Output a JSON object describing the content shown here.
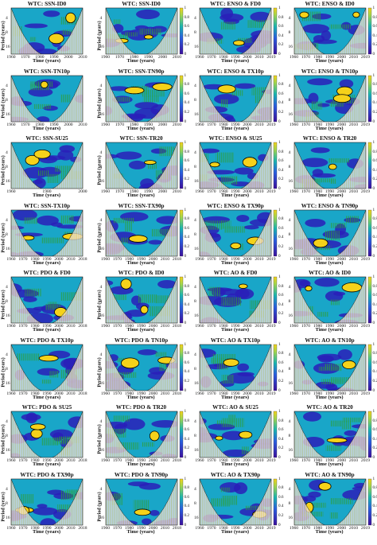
{
  "figure": {
    "colorbar_ticks": [
      "1",
      "0.8",
      "0.6",
      "0.4",
      "0.2",
      "0"
    ],
    "period_ticks": [
      "4",
      "8",
      "16"
    ],
    "ylabel": "Period (years)",
    "xlabel": "Time (years)",
    "colors": {
      "low": "#2a1fb8",
      "mid": "#19a6c8",
      "high": "#f5d21a",
      "contour": "#000000",
      "coi": "#e8e0f0",
      "hatch": "#2e9e38"
    }
  },
  "panels": [
    {
      "title": "WTC: SSN-ID0",
      "xticks": [
        "1960",
        "1970",
        "1980",
        "1990",
        "2000",
        "2010"
      ],
      "has_ylabel": true,
      "colorbar": false
    },
    {
      "title": "WTC: SSN-ID0",
      "xticks": [
        "1960",
        "1970",
        "1980",
        "1990",
        "2000",
        "2010"
      ],
      "has_ylabel": true,
      "colorbar": true
    },
    {
      "title": "WTC: ENSO & FD0",
      "xticks": [
        "1960",
        "1970",
        "1980",
        "1990",
        "2000",
        "2010",
        "2019"
      ],
      "has_ylabel": false,
      "colorbar": true
    },
    {
      "title": "WTC: ENSO & ID0",
      "xticks": [
        "1960",
        "1970",
        "1980",
        "1990",
        "2000",
        "2010",
        "2019"
      ],
      "has_ylabel": false,
      "colorbar": true
    },
    {
      "title": "WTC: SSN-TN10p",
      "xticks": [
        "1960",
        "1970",
        "1980",
        "1990",
        "2000",
        "2010"
      ],
      "has_ylabel": true,
      "colorbar": false
    },
    {
      "title": "WTC: SSN-TN90p",
      "xticks": [
        "1960",
        "1970",
        "1980",
        "1990",
        "2000",
        "2010"
      ],
      "has_ylabel": true,
      "colorbar": true
    },
    {
      "title": "WTC: ENSO & TX10p",
      "xticks": [
        "1960",
        "1970",
        "1980",
        "1990",
        "2000",
        "2010",
        "2019"
      ],
      "has_ylabel": false,
      "colorbar": true
    },
    {
      "title": "WTC: ENSO & TN10p",
      "xticks": [
        "1960",
        "1970",
        "1980",
        "1990",
        "2000",
        "2010",
        "2019"
      ],
      "has_ylabel": false,
      "colorbar": true
    },
    {
      "title": "WTC: SSN-SU25",
      "xticks": [
        "1960",
        "1980",
        "2000"
      ],
      "has_ylabel": true,
      "colorbar": false
    },
    {
      "title": "WTC: SSN-TR20",
      "xticks": [
        "1960",
        "1970",
        "1980",
        "1990",
        "2000",
        "2010"
      ],
      "has_ylabel": true,
      "colorbar": true
    },
    {
      "title": "WTC: ENSO & SU25",
      "xticks": [
        "1960",
        "1970",
        "1980",
        "1990",
        "2000",
        "2010",
        "2019"
      ],
      "has_ylabel": false,
      "colorbar": true
    },
    {
      "title": "WTC: ENSO & TR20",
      "xticks": [
        "1960",
        "1970",
        "1980",
        "1990",
        "2000",
        "2010",
        "2019"
      ],
      "has_ylabel": false,
      "colorbar": true
    },
    {
      "title": "WTC: SSN-TX10p",
      "xticks": [
        "1960",
        "1970",
        "1980",
        "1990",
        "2000",
        "2010",
        "2018"
      ],
      "has_ylabel": true,
      "colorbar": false
    },
    {
      "title": "WTC: SSN-TX90p",
      "xticks": [
        "1960",
        "1970",
        "1980",
        "1990",
        "2000",
        "2010",
        "2018"
      ],
      "has_ylabel": true,
      "colorbar": true
    },
    {
      "title": "WTC: ENSO & TX90p",
      "xticks": [
        "1960",
        "1970",
        "1980",
        "1990",
        "2000",
        "2010",
        "2019"
      ],
      "has_ylabel": false,
      "colorbar": true
    },
    {
      "title": "WTC: ENSO & TN90p",
      "xticks": [
        "1960",
        "1970",
        "1980",
        "1990",
        "2000",
        "2010",
        "2019"
      ],
      "has_ylabel": false,
      "colorbar": true
    },
    {
      "title": "WTC: PDO & FD0",
      "xticks": [
        "1960",
        "1970",
        "1980",
        "1990",
        "2000",
        "2010",
        "2018"
      ],
      "has_ylabel": true,
      "colorbar": false
    },
    {
      "title": "WTC: PDO & ID0",
      "xticks": [
        "1960",
        "1970",
        "1980",
        "1990",
        "2000",
        "2010",
        "2018"
      ],
      "has_ylabel": true,
      "colorbar": true
    },
    {
      "title": "WTC: AO & FD0",
      "xticks": [
        "1960",
        "1970",
        "1980",
        "1990",
        "2000",
        "2010",
        "2019"
      ],
      "has_ylabel": false,
      "colorbar": true
    },
    {
      "title": "WTC: AO & ID0",
      "xticks": [
        "1960",
        "1970",
        "1980",
        "1990",
        "2000",
        "2010",
        "2019"
      ],
      "has_ylabel": false,
      "colorbar": true
    },
    {
      "title": "WTC: PDO & TX10p",
      "xticks": [
        "1960",
        "1970",
        "1980",
        "1990",
        "2000",
        "2010",
        "2018"
      ],
      "has_ylabel": true,
      "colorbar": false
    },
    {
      "title": "WTC: PDO & TN10p",
      "xticks": [
        "1960",
        "1970",
        "1980",
        "1990",
        "2000",
        "2010",
        "2018"
      ],
      "has_ylabel": true,
      "colorbar": true
    },
    {
      "title": "WTC: AO & TX10p",
      "xticks": [
        "1960",
        "1970",
        "1980",
        "1990",
        "2000",
        "2010",
        "2019"
      ],
      "has_ylabel": false,
      "colorbar": true
    },
    {
      "title": "WTC: AO & TN10p",
      "xticks": [
        "1960",
        "1970",
        "1980",
        "1990",
        "2000",
        "2010",
        "2019"
      ],
      "has_ylabel": false,
      "colorbar": true
    },
    {
      "title": "WTC: PDO & SU25",
      "xticks": [
        "1960",
        "1970",
        "1980",
        "1990",
        "2000",
        "2010",
        "2018"
      ],
      "has_ylabel": true,
      "colorbar": false
    },
    {
      "title": "WTC: PDO & TR20",
      "xticks": [
        "1960",
        "1970",
        "1980",
        "1990",
        "2000",
        "2010",
        "2018"
      ],
      "has_ylabel": true,
      "colorbar": true
    },
    {
      "title": "WTC: AO & SU25",
      "xticks": [
        "1960",
        "1970",
        "1980",
        "1990",
        "2000",
        "2010",
        "2019"
      ],
      "has_ylabel": false,
      "colorbar": true
    },
    {
      "title": "WTC: AO & TR20",
      "xticks": [
        "1960",
        "1970",
        "1980",
        "1990",
        "2000",
        "2010",
        "2019"
      ],
      "has_ylabel": false,
      "colorbar": true
    },
    {
      "title": "WTC: PDO & TX90p",
      "xticks": [
        "1960",
        "1970",
        "1980",
        "1990",
        "2000",
        "2010",
        "2018"
      ],
      "has_ylabel": true,
      "colorbar": false
    },
    {
      "title": "WTC: PDO & TN90p",
      "xticks": [
        "1960",
        "1970",
        "1980",
        "1990",
        "2000",
        "2010",
        "2018"
      ],
      "has_ylabel": true,
      "colorbar": true
    },
    {
      "title": "WTC: AO & TX90p",
      "xticks": [
        "1960",
        "1970",
        "1980",
        "1990",
        "2000",
        "2010",
        "2019"
      ],
      "has_ylabel": false,
      "colorbar": true
    },
    {
      "title": "WTC: AO & TN90p",
      "xticks": [
        "1960",
        "1970",
        "1980",
        "1990",
        "2000",
        "2010",
        "2019"
      ],
      "has_ylabel": false,
      "colorbar": true
    }
  ]
}
